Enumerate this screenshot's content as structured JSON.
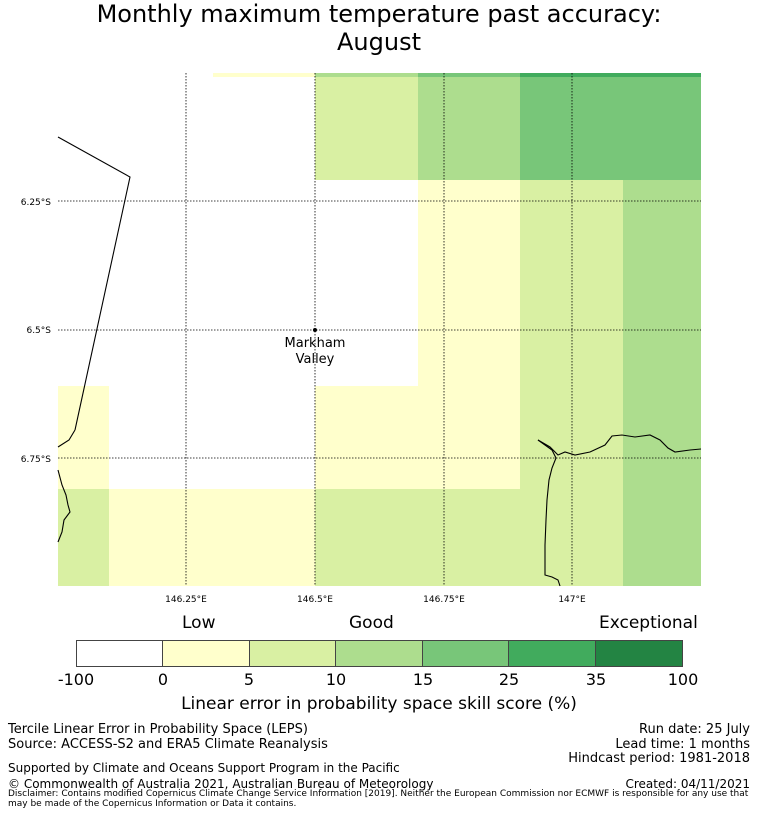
{
  "title_line1": "Monthly maximum temperature past accuracy:",
  "title_line2": "August",
  "map": {
    "lon_labels": [
      "146.25°E",
      "146.5°E",
      "146.75°E",
      "147°E"
    ],
    "lat_labels": [
      "6.25°S",
      "6.5°S",
      "6.75°S"
    ],
    "place": {
      "name_line1": "Markham",
      "name_line2": "Valley"
    }
  },
  "colorbar": {
    "category_labels": [
      "Low",
      "Good",
      "Exceptional"
    ],
    "ticks": [
      "-100",
      "0",
      "5",
      "10",
      "15",
      "25",
      "35",
      "100"
    ],
    "colors": [
      "#ffffff",
      "#ffffcc",
      "#d9f0a3",
      "#addd8e",
      "#78c679",
      "#41ab5d",
      "#238443"
    ],
    "xlabel": "Linear error in probability space skill score (%)"
  },
  "footer": {
    "line1_left": "Tercile Linear Error in Probability Space (LEPS)",
    "line2_left": "Source: ACCESS-S2 and ERA5 Climate Reanalysis",
    "line3_left": "Supported by Climate and Oceans Support Program in the Pacific",
    "line4_left": "© Commonwealth of Australia 2021, Australian Bureau of Meteorology",
    "run_date": "Run date: 25 July",
    "lead_time": "Lead time: 1 months",
    "hindcast": "Hindcast period: 1981-2018",
    "created": "Created: 04/11/2021",
    "disclaimer": "Disclaimer: Contains modified Copernicus Climate Change Service Information [2019]. Neither the European Commission nor ECMWF is responsible for any use that may be made of the Copernicus Information or Data it contains."
  }
}
